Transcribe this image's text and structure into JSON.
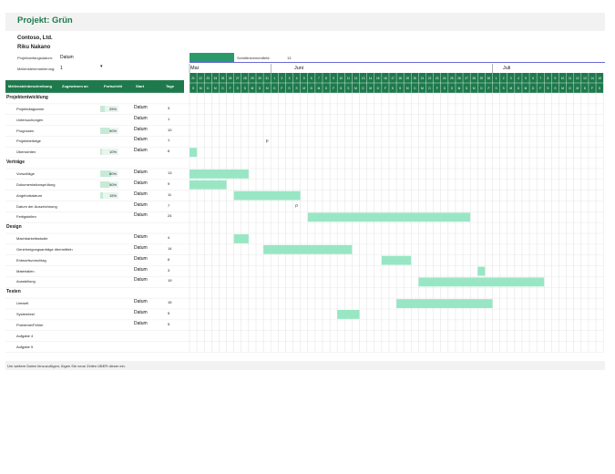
{
  "title": "Projekt: Grün",
  "company": "Contoso, Ltd.",
  "manager": "Riku Nakano",
  "project_start_label": "Projektanfangsdatum:",
  "project_start_value": "Datum",
  "milestone_label": "Meilensteinmarkierung:",
  "milestone_value": "1",
  "scroll_label": "Schrittinkrementfeld:",
  "scroll_value": "13",
  "headers": {
    "name": "Meilensteinbeschreibung",
    "assigned": "Zugewiesen an",
    "progress": "Fortschritt",
    "start": "Start",
    "days": "Tage"
  },
  "months": [
    "Mai",
    "Juni",
    "Juli"
  ],
  "day_numbers": [
    "21",
    "22",
    "23",
    "24",
    "25",
    "26",
    "27",
    "28",
    "29",
    "30",
    "31",
    "1",
    "2",
    "3",
    "4",
    "5",
    "6",
    "7",
    "8",
    "9",
    "10",
    "11",
    "12",
    "13",
    "14",
    "15",
    "16",
    "17",
    "18",
    "19",
    "20",
    "21",
    "22",
    "23",
    "24",
    "25",
    "26",
    "27",
    "28",
    "29",
    "30",
    "1",
    "2",
    "3",
    "4",
    "5",
    "6",
    "7",
    "8",
    "9",
    "10",
    "11",
    "12",
    "13",
    "14",
    "15",
    "16",
    "17",
    "18"
  ],
  "weekday_letters": [
    "S",
    "M",
    "D",
    "M",
    "D",
    "F",
    "S",
    "S",
    "M",
    "D",
    "M",
    "D",
    "F",
    "S",
    "S",
    "M",
    "D",
    "M",
    "D",
    "F",
    "S",
    "S",
    "M",
    "D",
    "M",
    "D",
    "F",
    "S",
    "S",
    "M",
    "D",
    "M",
    "D",
    "F",
    "S",
    "S",
    "M",
    "D",
    "M",
    "D",
    "F",
    "S",
    "S",
    "M",
    "D",
    "M",
    "D",
    "F",
    "S",
    "S",
    "M",
    "D",
    "M",
    "D",
    "F",
    "S",
    "S",
    "M",
    "D"
  ],
  "rows": [
    {
      "type": "section",
      "name": "Projektentwicklung"
    },
    {
      "type": "task",
      "name": "Projektdiagramm",
      "progress": "25%",
      "progress_value": 25,
      "start": "Datum",
      "days": "3",
      "bar_start": 0,
      "bar_len": 0
    },
    {
      "type": "task",
      "name": "Untersuchungen",
      "progress": "",
      "progress_value": null,
      "start": "Datum",
      "days": "1",
      "bar_start": 0,
      "bar_len": 0
    },
    {
      "type": "task",
      "name": "Prognosen",
      "progress": "50%",
      "progress_value": 50,
      "start": "Datum",
      "days": "10",
      "bar_start": 0,
      "bar_len": 0
    },
    {
      "type": "task",
      "name": "Projektbeiträge",
      "progress": "",
      "progress_value": null,
      "start": "Datum",
      "days": "1",
      "bar_start": 0,
      "bar_len": 0,
      "marker": "P",
      "marker_col": 10
    },
    {
      "type": "task",
      "name": "Übersichten",
      "progress": "10%",
      "progress_value": 10,
      "start": "Datum",
      "days": "6",
      "bar_start": 0,
      "bar_len": 1
    },
    {
      "type": "section",
      "name": "Verträge"
    },
    {
      "type": "task",
      "name": "Vorschläge",
      "progress": "60%",
      "progress_value": 60,
      "start": "Datum",
      "days": "13",
      "bar_start": 0,
      "bar_len": 8
    },
    {
      "type": "task",
      "name": "Dokumentationsprüfung",
      "progress": "50%",
      "progress_value": 50,
      "start": "Datum",
      "days": "9",
      "bar_start": 0,
      "bar_len": 5
    },
    {
      "type": "task",
      "name": "Angebotsdatum",
      "progress": "15%",
      "progress_value": 15,
      "start": "Datum",
      "days": "11",
      "bar_start": 6,
      "bar_len": 9
    },
    {
      "type": "task",
      "name": "Datum der Auszeichnung",
      "progress": "",
      "progress_value": null,
      "start": "Datum",
      "days": "7",
      "bar_start": 0,
      "bar_len": 0,
      "marker": "P",
      "marker_col": 14
    },
    {
      "type": "task",
      "name": "Fertigstellen",
      "progress": "",
      "progress_value": null,
      "start": "Datum",
      "days": "24",
      "bar_start": 16,
      "bar_len": 22
    },
    {
      "type": "section",
      "name": "Design"
    },
    {
      "type": "task",
      "name": "Machbarkeitsstudie",
      "progress": "",
      "progress_value": null,
      "start": "Datum",
      "days": "4",
      "bar_start": 6,
      "bar_len": 2
    },
    {
      "type": "task",
      "name": "Genehmigungsanträge übermitteln",
      "progress": "",
      "progress_value": null,
      "start": "Datum",
      "days": "14",
      "bar_start": 10,
      "bar_len": 12
    },
    {
      "type": "task",
      "name": "Entwurfsvorschlag",
      "progress": "",
      "progress_value": null,
      "start": "Datum",
      "days": "6",
      "bar_start": 26,
      "bar_len": 4
    },
    {
      "type": "task",
      "name": "Materialien",
      "progress": "",
      "progress_value": null,
      "start": "Datum",
      "days": "3",
      "bar_start": 39,
      "bar_len": 1
    },
    {
      "type": "task",
      "name": "Ausstellung",
      "progress": "",
      "progress_value": null,
      "start": "Datum",
      "days": "19",
      "bar_start": 31,
      "bar_len": 17
    },
    {
      "type": "section",
      "name": "Testen"
    },
    {
      "type": "task",
      "name": "Umwelt",
      "progress": "",
      "progress_value": null,
      "start": "Datum",
      "days": "15",
      "bar_start": 28,
      "bar_len": 13
    },
    {
      "type": "task",
      "name": "Systemtest",
      "progress": "",
      "progress_value": null,
      "start": "Datum",
      "days": "5",
      "bar_start": 20,
      "bar_len": 3
    },
    {
      "type": "task",
      "name": "Probleme/Fehler",
      "progress": "",
      "progress_value": null,
      "start": "Datum",
      "days": "5",
      "bar_start": 0,
      "bar_len": 0
    },
    {
      "type": "task",
      "name": "Aufgabe 4",
      "progress": "",
      "progress_value": null,
      "start": "",
      "days": "",
      "bar_start": 0,
      "bar_len": 0
    },
    {
      "type": "task",
      "name": "Aufgabe 5",
      "progress": "",
      "progress_value": null,
      "start": "",
      "days": "",
      "bar_start": 0,
      "bar_len": 0
    }
  ],
  "footer": "Um weitere Daten hinzuzufügen, fügen Sie neue Zeilen ÜBER dieser ein.",
  "colors": {
    "header_green": "#1e7a4c",
    "bar": "#99e6c4",
    "title_green": "#1e7a4c",
    "scroll": "#2a9a6a"
  }
}
